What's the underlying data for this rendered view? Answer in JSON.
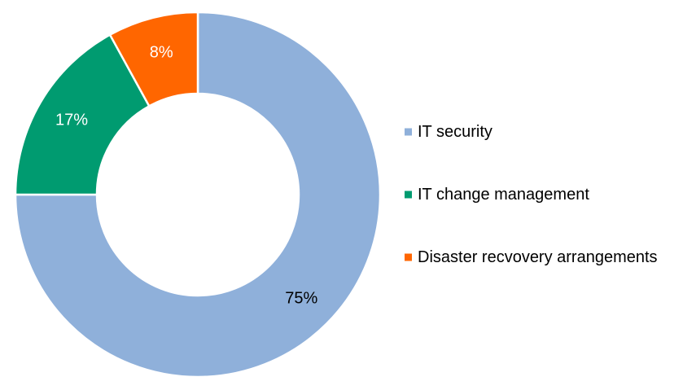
{
  "chart_data": {
    "type": "pie",
    "variant": "donut",
    "title": "",
    "categories": [
      "IT security",
      "IT change management",
      "Disaster recvovery arrangements"
    ],
    "values": [
      75,
      17,
      8
    ],
    "data_labels": [
      "75%",
      "17%",
      "8%"
    ],
    "colors": [
      "#8FB0DA",
      "#009B70",
      "#FF6600"
    ],
    "label_colors": [
      "#000000",
      "#ffffff",
      "#ffffff"
    ],
    "legend": {
      "position": "right",
      "entries": [
        "IT security",
        "IT change management",
        "Disaster recvovery arrangements"
      ]
    }
  }
}
